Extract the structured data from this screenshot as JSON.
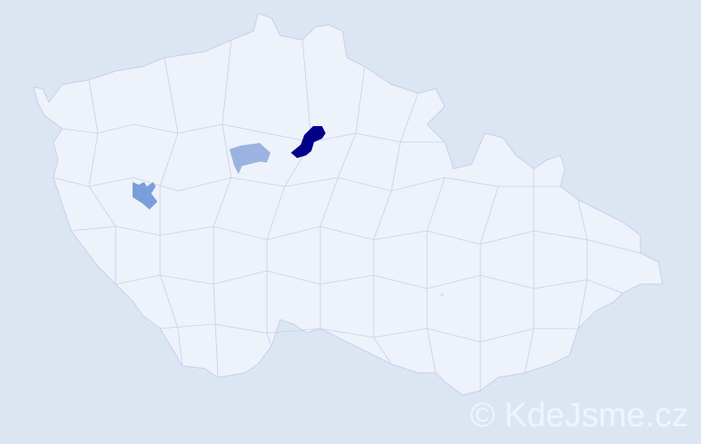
{
  "map": {
    "background_color": "#dce6f2",
    "region_fill": "#eef2fa",
    "border_color": "#c6cfee",
    "highlighted_regions": [
      {
        "level": "high",
        "color": "#000088"
      },
      {
        "level": "medium",
        "color": "#9bb3e0"
      },
      {
        "level": "medium-high",
        "color": "#7a9edb"
      }
    ]
  },
  "watermark": {
    "text": "© KdeJsme.cz"
  }
}
